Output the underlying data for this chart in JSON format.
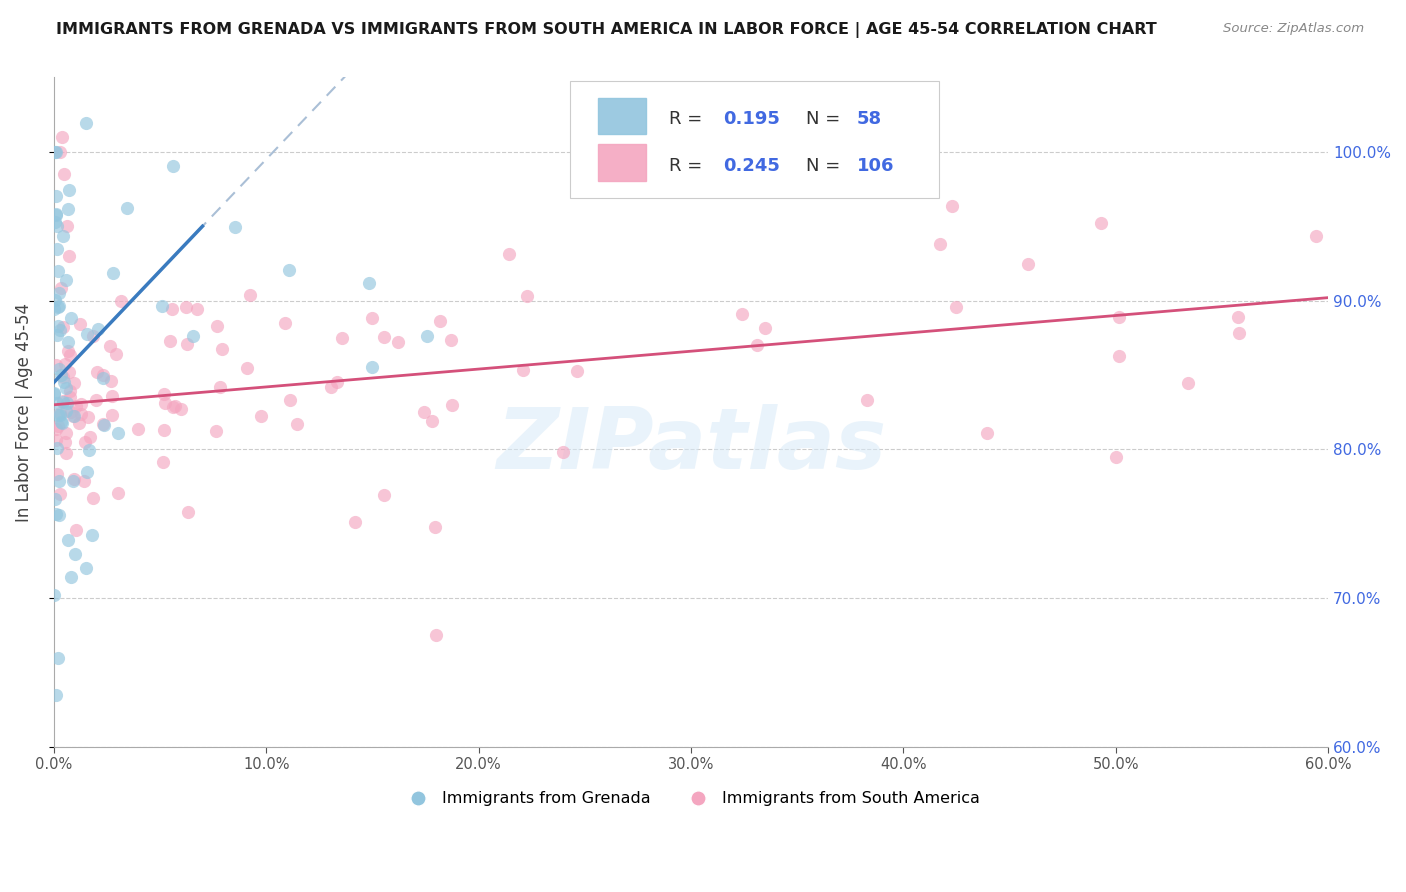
{
  "title": "IMMIGRANTS FROM GRENADA VS IMMIGRANTS FROM SOUTH AMERICA IN LABOR FORCE | AGE 45-54 CORRELATION CHART",
  "source": "Source: ZipAtlas.com",
  "ylabel_left": "In Labor Force | Age 45-54",
  "xlim": [
    0.0,
    60.0
  ],
  "ylim": [
    60.0,
    105.0
  ],
  "yticks": [
    60,
    70,
    80,
    90,
    100
  ],
  "xticks": [
    0,
    10,
    20,
    30,
    40,
    50,
    60
  ],
  "grenada_R": "0.195",
  "grenada_N": "58",
  "sa_R": "0.245",
  "sa_N": "106",
  "blue_scatter_color": "#92c5de",
  "pink_scatter_color": "#f4a6c0",
  "blue_line_color": "#3a7bbf",
  "pink_line_color": "#d4507a",
  "right_axis_color": "#4169e1",
  "legend_text_color": "#333333",
  "legend_val_color": "#4169e1",
  "watermark": "ZIPatlas",
  "background_color": "#ffffff",
  "grid_color": "#cccccc"
}
